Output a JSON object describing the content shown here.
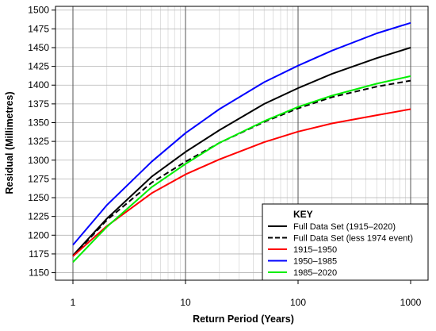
{
  "chart_data": {
    "type": "line",
    "xlabel": "Return Period (Years)",
    "ylabel": "Residual (Millimetres)",
    "xscale": "log",
    "xlim": [
      1,
      1000
    ],
    "ylim": [
      1140,
      1505
    ],
    "xticks": [
      1,
      10,
      100,
      1000
    ],
    "xtick_labels": [
      "1",
      "10",
      "100",
      "1000"
    ],
    "yticks": [
      1150,
      1175,
      1200,
      1225,
      1250,
      1275,
      1300,
      1325,
      1350,
      1375,
      1400,
      1425,
      1450,
      1475,
      1500
    ],
    "ytick_labels": [
      "1150",
      "1175",
      "1200",
      "1225",
      "1250",
      "1275",
      "1300",
      "1325",
      "1350",
      "1375",
      "1400",
      "1425",
      "1450",
      "1475",
      "1500"
    ],
    "grid": true,
    "legend": {
      "title": "KEY",
      "position": "bottom-right"
    },
    "x": [
      1,
      2,
      5,
      10,
      20,
      50,
      100,
      200,
      500,
      1000
    ],
    "series": [
      {
        "name": "Full Data Set (1915–2020)",
        "color": "#000000",
        "dashed": false,
        "values": [
          1173,
          1222,
          1278,
          1311,
          1340,
          1375,
          1396,
          1415,
          1436,
          1450
        ]
      },
      {
        "name": "Full Data Set (less 1974 event)",
        "color": "#000000",
        "dashed": true,
        "values": [
          1172,
          1220,
          1270,
          1298,
          1323,
          1351,
          1369,
          1384,
          1398,
          1406
        ]
      },
      {
        "name": "1915–1950",
        "color": "#ff0000",
        "dashed": false,
        "values": [
          1172,
          1212,
          1256,
          1281,
          1301,
          1324,
          1338,
          1349,
          1360,
          1368
        ]
      },
      {
        "name": "1950–1985",
        "color": "#0000ff",
        "dashed": false,
        "values": [
          1187,
          1240,
          1298,
          1336,
          1368,
          1404,
          1426,
          1446,
          1469,
          1483
        ]
      },
      {
        "name": "1985–2020",
        "color": "#00ee00",
        "dashed": false,
        "values": [
          1164,
          1211,
          1264,
          1295,
          1323,
          1352,
          1371,
          1386,
          1402,
          1412
        ]
      }
    ]
  }
}
